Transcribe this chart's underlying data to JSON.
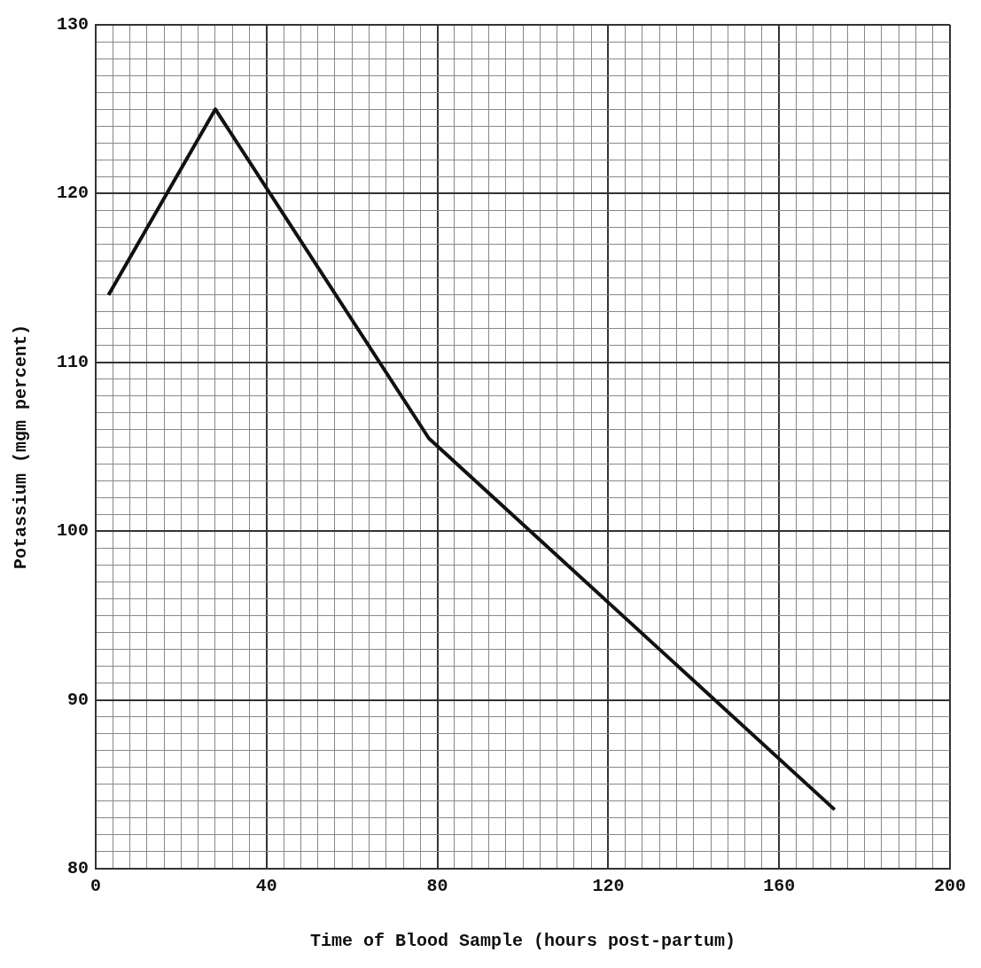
{
  "chart_data": {
    "type": "line",
    "xlabel": "Time of Blood Sample (hours post-partum)",
    "ylabel": "Potassium (mgm percent)",
    "x": [
      3,
      28,
      78,
      173
    ],
    "series": [
      {
        "color": "#111111",
        "values": [
          114,
          125,
          105.5,
          83.5
        ]
      }
    ],
    "xlim": [
      0,
      200
    ],
    "ylim": [
      80,
      130
    ],
    "xticks": [
      0,
      {
        "value": 4,
        "label": null
      },
      {
        "value": 8,
        "label": null
      },
      {
        "value": 12,
        "label": null
      },
      {
        "value": 16,
        "label": null
      },
      {
        "value": 20,
        "label": null
      },
      {
        "value": 24,
        "label": null
      },
      {
        "value": 28,
        "label": null
      },
      {
        "value": 32,
        "label": null
      },
      {
        "value": 36,
        "label": null
      },
      40,
      {
        "value": 44,
        "label": null
      },
      {
        "value": 48,
        "label": null
      },
      {
        "value": 52,
        "label": null
      },
      {
        "value": 56,
        "label": null
      },
      {
        "value": 60,
        "label": null
      },
      {
        "value": 64,
        "label": null
      },
      {
        "value": 68,
        "label": null
      },
      {
        "value": 72,
        "label": null
      },
      {
        "value": 76,
        "label": null
      },
      80,
      {
        "value": 84,
        "label": null
      },
      {
        "value": 88,
        "label": null
      },
      {
        "value": 92,
        "label": null
      },
      {
        "value": 96,
        "label": null
      },
      {
        "value": 100,
        "label": null
      },
      {
        "value": 104,
        "label": null
      },
      {
        "value": 108,
        "label": null
      },
      {
        "value": 112,
        "label": null
      },
      {
        "value": 116,
        "label": null
      },
      120,
      {
        "value": 124,
        "label": null
      },
      {
        "value": 128,
        "label": null
      },
      {
        "value": 132,
        "label": null
      },
      {
        "value": 136,
        "label": null
      },
      {
        "value": 140,
        "label": null
      },
      {
        "value": 144,
        "label": null
      },
      {
        "value": 148,
        "label": null
      },
      {
        "value": 152,
        "label": null
      },
      {
        "value": 156,
        "label": null
      },
      160,
      {
        "value": 164,
        "label": null
      },
      {
        "value": 168,
        "label": null
      },
      {
        "value": 172,
        "label": null
      },
      {
        "value": 176,
        "label": null
      },
      {
        "value": 180,
        "label": null
      },
      {
        "value": 184,
        "label": null
      },
      {
        "value": 188,
        "label": null
      },
      {
        "value": 192,
        "label": null
      },
      {
        "value": 196,
        "label": null
      },
      200
    ],
    "yticks": [
      80,
      {
        "value": 81,
        "label": null
      },
      {
        "value": 82,
        "label": null
      },
      {
        "value": 83,
        "label": null
      },
      {
        "value": 84,
        "label": null
      },
      {
        "value": 85,
        "label": null
      },
      {
        "value": 86,
        "label": null
      },
      {
        "value": 87,
        "label": null
      },
      {
        "value": 88,
        "label": null
      },
      {
        "value": 89,
        "label": null
      },
      90,
      {
        "value": 91,
        "label": null
      },
      {
        "value": 92,
        "label": null
      },
      {
        "value": 93,
        "label": null
      },
      {
        "value": 94,
        "label": null
      },
      {
        "value": 95,
        "label": null
      },
      {
        "value": 96,
        "label": null
      },
      {
        "value": 97,
        "label": null
      },
      {
        "value": 98,
        "label": null
      },
      {
        "value": 99,
        "label": null
      },
      100,
      {
        "value": 101,
        "label": null
      },
      {
        "value": 102,
        "label": null
      },
      {
        "value": 103,
        "label": null
      },
      {
        "value": 104,
        "label": null
      },
      {
        "value": 105,
        "label": null
      },
      {
        "value": 106,
        "label": null
      },
      {
        "value": 107,
        "label": null
      },
      {
        "value": 108,
        "label": null
      },
      {
        "value": 109,
        "label": null
      },
      110,
      {
        "value": 111,
        "label": null
      },
      {
        "value": 112,
        "label": null
      },
      {
        "value": 113,
        "label": null
      },
      {
        "value": 114,
        "label": null
      },
      {
        "value": 115,
        "label": null
      },
      {
        "value": 116,
        "label": null
      },
      {
        "value": 117,
        "label": null
      },
      {
        "value": 118,
        "label": null
      },
      {
        "value": 119,
        "label": null
      },
      120,
      {
        "value": 121,
        "label": null
      },
      {
        "value": 122,
        "label": null
      },
      {
        "value": 123,
        "label": null
      },
      {
        "value": 124,
        "label": null
      },
      {
        "value": 125,
        "label": null
      },
      {
        "value": 126,
        "label": null
      },
      {
        "value": 127,
        "label": null
      },
      {
        "value": 128,
        "label": null
      },
      {
        "value": 129,
        "label": null
      },
      130
    ],
    "grid": true,
    "legend": false,
    "marker": "none",
    "line_style": "solid"
  }
}
